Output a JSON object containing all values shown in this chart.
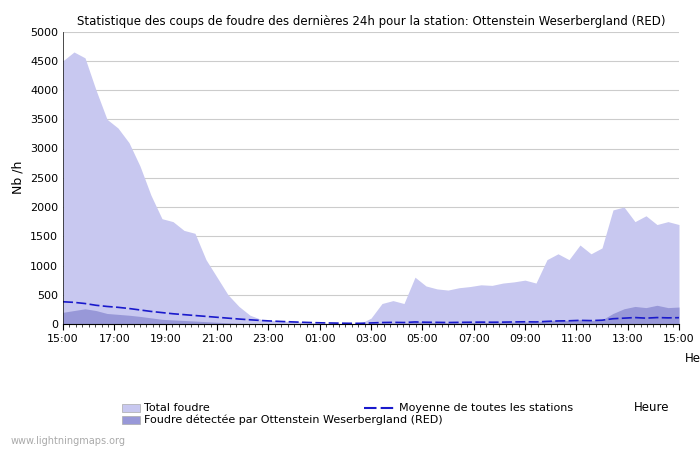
{
  "title": "Statistique des coups de foudre des dernières 24h pour la station: Ottenstein Weserbergland (RED)",
  "xlabel": "Heure",
  "ylabel": "Nb /h",
  "ylim": [
    0,
    5000
  ],
  "yticks": [
    0,
    500,
    1000,
    1500,
    2000,
    2500,
    3000,
    3500,
    4000,
    4500,
    5000
  ],
  "xtick_labels": [
    "15:00",
    "17:00",
    "19:00",
    "21:00",
    "23:00",
    "01:00",
    "03:00",
    "05:00",
    "07:00",
    "09:00",
    "11:00",
    "13:00",
    "15:00"
  ],
  "watermark": "www.lightningmaps.org",
  "color_total": "#c8c8f0",
  "color_detected": "#9898d8",
  "color_moyenne": "#1a1acc",
  "total_foudre": [
    4500,
    4650,
    4550,
    4000,
    3500,
    3350,
    3100,
    2700,
    2200,
    1800,
    1750,
    1600,
    1550,
    1100,
    800,
    500,
    300,
    150,
    80,
    60,
    50,
    40,
    30,
    20,
    10,
    5,
    5,
    5,
    100,
    350,
    400,
    350,
    800,
    650,
    600,
    580,
    620,
    640,
    670,
    660,
    700,
    720,
    750,
    700,
    1100,
    1200,
    1100,
    1350,
    1200,
    1300,
    1950,
    2000,
    1750,
    1850,
    1700,
    1750,
    1700
  ],
  "detected_foudre": [
    200,
    230,
    260,
    230,
    180,
    165,
    150,
    130,
    105,
    80,
    70,
    60,
    50,
    40,
    30,
    20,
    12,
    8,
    5,
    4,
    4,
    3,
    3,
    3,
    3,
    2,
    2,
    2,
    10,
    20,
    18,
    12,
    40,
    30,
    25,
    20,
    22,
    25,
    28,
    25,
    30,
    32,
    35,
    30,
    55,
    65,
    60,
    75,
    60,
    70,
    180,
    260,
    300,
    280,
    320,
    280,
    290
  ],
  "moyenne": [
    380,
    370,
    350,
    320,
    300,
    285,
    265,
    240,
    215,
    195,
    175,
    160,
    145,
    130,
    115,
    100,
    85,
    72,
    60,
    50,
    42,
    35,
    28,
    22,
    18,
    15,
    12,
    12,
    18,
    25,
    28,
    25,
    35,
    30,
    28,
    25,
    28,
    30,
    32,
    30,
    32,
    35,
    38,
    35,
    45,
    52,
    55,
    62,
    58,
    65,
    90,
    100,
    110,
    100,
    110,
    105,
    108
  ],
  "n_points": 57
}
